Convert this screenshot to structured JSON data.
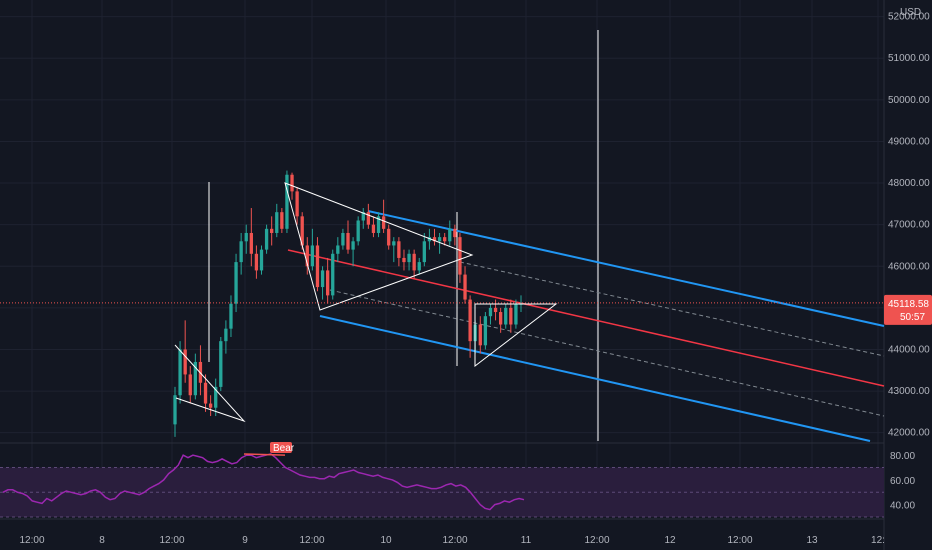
{
  "chart_data": {
    "type": "candlestick",
    "currency": "USD",
    "x_ticks": [
      "12:00",
      "8",
      "12:00",
      "9",
      "12:00",
      "10",
      "12:00",
      "11",
      "12:00",
      "12",
      "12:00",
      "13",
      "12:"
    ],
    "price_axis": {
      "ticks": [
        52000,
        51000,
        50000,
        49000,
        48000,
        47000,
        46000,
        45000,
        44000,
        43000,
        42000
      ],
      "tick_labels": [
        "52000.00",
        "51000.00",
        "50000.00",
        "49000.00",
        "48000.00",
        "47000.00",
        "46000.00",
        "45000.00",
        "44000.00",
        "43000.00",
        "42000.00"
      ],
      "range": [
        41800,
        52400
      ]
    },
    "last_price": "45118.58",
    "countdown": "50:57",
    "candles": [
      [
        42200,
        43100,
        41900,
        42900
      ],
      [
        42900,
        44200,
        42700,
        44000
      ],
      [
        44000,
        44700,
        43200,
        43400
      ],
      [
        43400,
        43600,
        42700,
        42900
      ],
      [
        42900,
        43900,
        42800,
        43700
      ],
      [
        43700,
        44100,
        42900,
        43200
      ],
      [
        43200,
        43400,
        42500,
        42700
      ],
      [
        42700,
        42900,
        42400,
        42600
      ],
      [
        42600,
        43300,
        42400,
        43100
      ],
      [
        43100,
        44300,
        43000,
        44200
      ],
      [
        44200,
        44700,
        43900,
        44500
      ],
      [
        44500,
        45300,
        44300,
        45100
      ],
      [
        45100,
        46300,
        44900,
        46100
      ],
      [
        46100,
        46800,
        45800,
        46600
      ],
      [
        46600,
        47000,
        46300,
        46800
      ],
      [
        46800,
        47400,
        46000,
        46300
      ],
      [
        46300,
        46500,
        45700,
        45900
      ],
      [
        45900,
        46500,
        45800,
        46400
      ],
      [
        46400,
        47000,
        46300,
        46900
      ],
      [
        46900,
        47200,
        46500,
        46800
      ],
      [
        46800,
        47500,
        46700,
        47300
      ],
      [
        47300,
        47400,
        46800,
        46900
      ],
      [
        46900,
        48300,
        46800,
        48200
      ],
      [
        48200,
        48250,
        47600,
        47800
      ],
      [
        47800,
        47900,
        47000,
        47200
      ],
      [
        47200,
        47300,
        46400,
        46500
      ],
      [
        46500,
        46700,
        45800,
        46000
      ],
      [
        46000,
        46900,
        45900,
        46500
      ],
      [
        46500,
        46700,
        45400,
        45500
      ],
      [
        45500,
        46000,
        45200,
        45900
      ],
      [
        45900,
        46200,
        45100,
        45300
      ],
      [
        45300,
        46400,
        45200,
        46300
      ],
      [
        46300,
        46700,
        46100,
        46500
      ],
      [
        46500,
        46900,
        46400,
        46800
      ],
      [
        46800,
        47100,
        46300,
        46400
      ],
      [
        46400,
        46700,
        46000,
        46600
      ],
      [
        46600,
        47200,
        46500,
        47100
      ],
      [
        47100,
        47400,
        46900,
        47300
      ],
      [
        47300,
        47500,
        46900,
        47000
      ],
      [
        47000,
        47200,
        46700,
        46800
      ],
      [
        46800,
        47300,
        46700,
        47200
      ],
      [
        47200,
        47600,
        46800,
        46900
      ],
      [
        46900,
        47000,
        46400,
        46500
      ],
      [
        46500,
        46700,
        46100,
        46600
      ],
      [
        46600,
        46700,
        46000,
        46200
      ],
      [
        46200,
        46400,
        45900,
        46100
      ],
      [
        46100,
        46400,
        45900,
        46300
      ],
      [
        46300,
        46400,
        45700,
        45900
      ],
      [
        45900,
        46200,
        45800,
        46100
      ],
      [
        46100,
        46800,
        46000,
        46600
      ],
      [
        46600,
        46900,
        46400,
        46700
      ],
      [
        46700,
        46900,
        46500,
        46600
      ],
      [
        46600,
        46800,
        46300,
        46700
      ],
      [
        46700,
        46800,
        46500,
        46600
      ],
      [
        46600,
        47100,
        46500,
        46900
      ],
      [
        46900,
        47000,
        46500,
        46700
      ],
      [
        46700,
        46800,
        45600,
        45800
      ],
      [
        45800,
        46000,
        45100,
        45200
      ],
      [
        45200,
        45300,
        43800,
        44200
      ],
      [
        44200,
        44700,
        43900,
        44600
      ],
      [
        44600,
        44800,
        43900,
        44100
      ],
      [
        44100,
        44900,
        44000,
        44800
      ],
      [
        44800,
        45100,
        44600,
        45000
      ],
      [
        45000,
        45200,
        44700,
        44900
      ],
      [
        44900,
        45000,
        44400,
        44600
      ],
      [
        44600,
        45100,
        44500,
        45000
      ],
      [
        45000,
        45200,
        44400,
        44600
      ],
      [
        44600,
        45200,
        44500,
        45100
      ],
      [
        45100,
        45300,
        44900,
        45100
      ]
    ],
    "rsi": {
      "ticks": [
        80,
        60,
        40
      ],
      "tick_labels": [
        "80.00",
        "60.00",
        "40.00"
      ],
      "range": [
        30,
        85
      ],
      "band": [
        30,
        70
      ],
      "values": [
        50,
        52,
        52,
        50,
        49,
        47,
        43,
        42,
        41,
        45,
        43,
        46,
        49,
        51,
        50,
        49,
        48,
        49,
        51,
        52,
        50,
        46,
        44,
        45,
        49,
        51,
        50,
        49,
        48,
        50,
        53,
        55,
        57,
        60,
        65,
        68,
        72,
        80,
        78,
        80,
        79,
        78,
        75,
        74,
        75,
        77,
        75,
        73,
        74,
        78,
        80,
        80,
        78,
        79,
        80,
        81,
        78,
        74,
        70,
        68,
        66,
        64,
        63,
        62,
        62,
        61,
        61,
        63,
        62,
        65,
        66,
        67,
        68,
        66,
        65,
        64,
        63,
        64,
        62,
        61,
        60,
        58,
        55,
        54,
        55,
        56,
        55,
        54,
        53,
        53,
        54,
        56,
        57,
        55,
        56,
        54,
        50,
        45,
        40,
        37,
        36,
        40,
        41,
        43,
        42,
        44,
        45,
        44
      ]
    },
    "divergence_label": "Bear",
    "colors": {
      "up": "#26a69a",
      "down": "#ef5350",
      "channel_outer": "#2196f3",
      "channel_mid": "#f23645",
      "rsi": "#9c27b0",
      "pattern": "#ffffff"
    }
  }
}
